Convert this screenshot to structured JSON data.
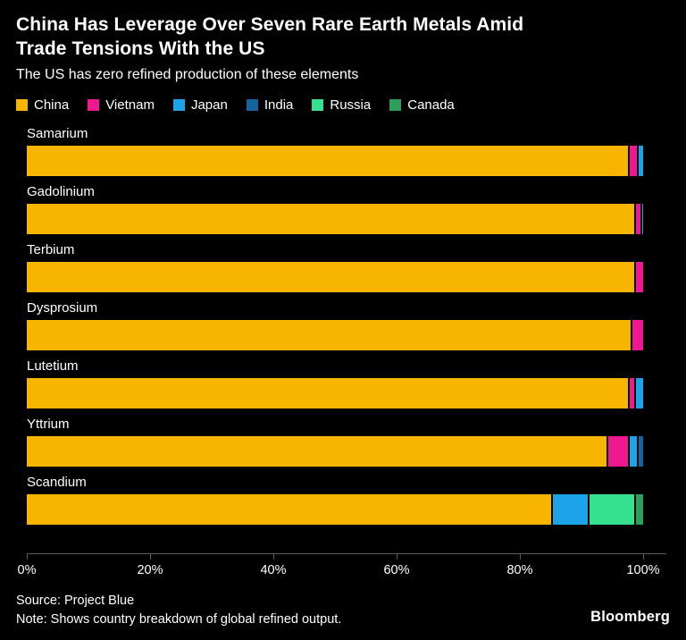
{
  "header": {
    "title": "China Has Leverage Over Seven Rare Earth Metals Amid\nTrade Tensions With the US",
    "subtitle": "The US has zero refined production of these elements"
  },
  "legend": {
    "items": [
      {
        "label": "China",
        "color": "#f7b500"
      },
      {
        "label": "Vietnam",
        "color": "#f0188f"
      },
      {
        "label": "Japan",
        "color": "#1ca3e8"
      },
      {
        "label": "India",
        "color": "#15639c"
      },
      {
        "label": "Russia",
        "color": "#35e08e"
      },
      {
        "label": "Canada",
        "color": "#2e9e5c"
      }
    ]
  },
  "chart_data": {
    "type": "bar",
    "orientation": "horizontal",
    "stacked": true,
    "unit": "%",
    "title": "China Has Leverage Over Seven Rare Earth Metals Amid Trade Tensions With the US",
    "subtitle": "The US has zero refined production of these elements",
    "xlim": [
      0,
      100
    ],
    "x_ticks": [
      {
        "label": "0%",
        "value": 0
      },
      {
        "label": "20%",
        "value": 20
      },
      {
        "label": "40%",
        "value": 40
      },
      {
        "label": "60%",
        "value": 60
      },
      {
        "label": "80%",
        "value": 80
      },
      {
        "label": "100%",
        "value": 100
      }
    ],
    "series_colors": {
      "China": "#f7b500",
      "Vietnam": "#f0188f",
      "Japan": "#1ca3e8",
      "India": "#15639c",
      "Russia": "#35e08e",
      "Canada": "#2e9e5c"
    },
    "categories": [
      "Samarium",
      "Gadolinium",
      "Terbium",
      "Dysprosium",
      "Lutetium",
      "Yttrium",
      "Scandium"
    ],
    "series": [
      {
        "name": "China",
        "values": [
          97.5,
          98.5,
          98.5,
          98,
          97.5,
          94,
          85
        ]
      },
      {
        "name": "Vietnam",
        "values": [
          1.5,
          1,
          1.5,
          2,
          1,
          3.5,
          0
        ]
      },
      {
        "name": "Japan",
        "values": [
          1,
          0.5,
          0,
          0,
          1.5,
          1.5,
          6
        ]
      },
      {
        "name": "India",
        "values": [
          0,
          0,
          0,
          0,
          0,
          1,
          0
        ]
      },
      {
        "name": "Russia",
        "values": [
          0,
          0,
          0,
          0,
          0,
          0,
          7.5
        ]
      },
      {
        "name": "Canada",
        "values": [
          0,
          0,
          0,
          0,
          0,
          0,
          1.5
        ]
      }
    ],
    "legend_position": "top",
    "grid": false
  },
  "footer": {
    "source": "Source: Project Blue",
    "note": "Note: Shows country breakdown of global refined output.",
    "logo": "Bloomberg"
  }
}
